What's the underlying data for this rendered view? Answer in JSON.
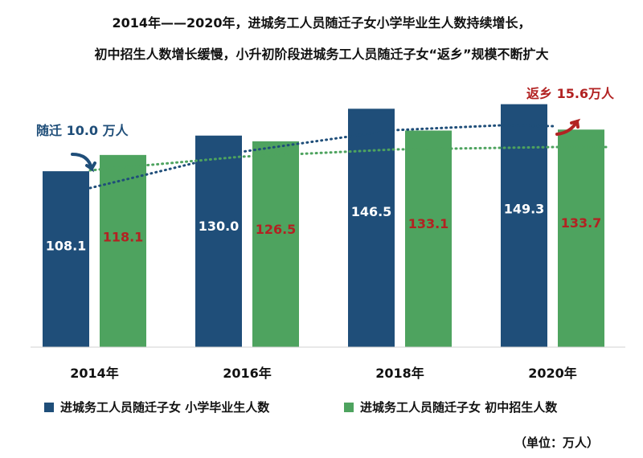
{
  "title_line1": "2014年——2020年，进城务工人员随迁子女小学毕业生人数持续增长，",
  "title_line2": "初中招生人数增长缓慢，小升初阶段进城务工人员随迁子女“返乡”规模不断扩大",
  "unit": "（单位：万人）",
  "colors": {
    "navy": "#1f4e79",
    "green": "#4ea35f",
    "red_text": "#b22222",
    "blue_text": "#1f4e79"
  },
  "annotations": {
    "left": "随迁 10.0 万人",
    "right": "返乡 15.6万人"
  },
  "chart_data": {
    "type": "bar",
    "categories": [
      "2014年",
      "2016年",
      "2018年",
      "2020年"
    ],
    "series": [
      {
        "name": "进城务工人员随迁子女 小学毕业生人数",
        "values": [
          108.1,
          130.0,
          146.5,
          149.3
        ],
        "color": "#1f4e79"
      },
      {
        "name": "进城务工人员随迁子女 初中招生人数",
        "values": [
          118.1,
          126.5,
          133.1,
          133.7
        ],
        "color": "#4ea35f"
      }
    ],
    "ylim": [
      0,
      160
    ],
    "grid": false,
    "legend_position": "bottom"
  }
}
